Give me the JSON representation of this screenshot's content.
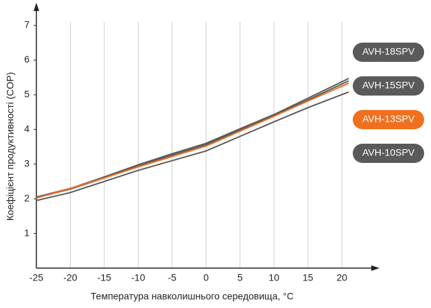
{
  "chart_data": {
    "type": "line",
    "x_label": "Температура навколишнього середовища, °C",
    "y_label": "Коефіцієнт продуктивності (COP)",
    "x": [
      -25,
      -20,
      -15,
      -10,
      -5,
      0,
      5,
      10,
      15,
      21
    ],
    "series": [
      {
        "name": "AVH-18SPV",
        "color": "#5a5a5a",
        "values": [
          2.05,
          2.3,
          2.63,
          2.98,
          3.3,
          3.6,
          4.02,
          4.43,
          4.9,
          5.47
        ]
      },
      {
        "name": "AVH-15SPV",
        "color": "#5a5a5a",
        "values": [
          2.03,
          2.28,
          2.6,
          2.94,
          3.26,
          3.56,
          3.98,
          4.41,
          4.85,
          5.4
        ]
      },
      {
        "name": "AVH-13SPV",
        "color": "#f07020",
        "values": [
          2.02,
          2.3,
          2.6,
          2.92,
          3.22,
          3.52,
          3.95,
          4.38,
          4.82,
          5.33
        ]
      },
      {
        "name": "AVH-10SPV",
        "color": "#5a5a5a",
        "values": [
          1.95,
          2.18,
          2.5,
          2.82,
          3.1,
          3.38,
          3.8,
          4.22,
          4.63,
          5.08
        ]
      }
    ],
    "xlim": [
      -25,
      21
    ],
    "ylim": [
      0,
      7
    ],
    "xticks": [
      -25,
      -20,
      -15,
      -10,
      -5,
      0,
      5,
      10,
      15,
      20
    ],
    "yticks": [
      1,
      2,
      3,
      4,
      5,
      6,
      7
    ],
    "grid": true,
    "legend": "right"
  }
}
